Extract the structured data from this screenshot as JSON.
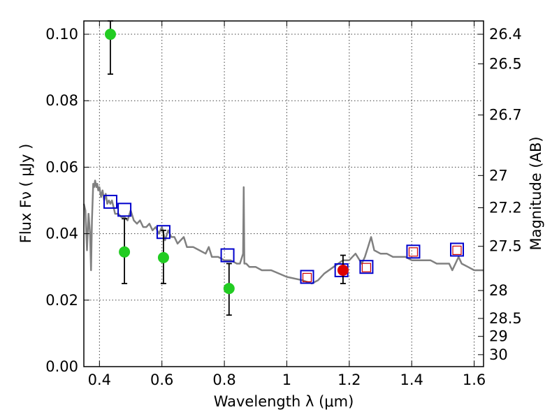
{
  "chart_data": {
    "type": "scatter",
    "title": "",
    "xlabel": "Wavelength  λ (μm)",
    "ylabel": "Flux  Fν  ( μJy )",
    "ylabel_right": "Magnitude (AB)",
    "xlim": [
      0.35,
      1.63
    ],
    "ylim": [
      0.0,
      0.104
    ],
    "grid": true,
    "x_ticks": [
      0.4,
      0.6,
      0.8,
      1.0,
      1.2,
      1.4,
      1.6
    ],
    "x_tick_labels": [
      "0.4",
      "0.6",
      "0.8",
      "1",
      "1.2",
      "1.4",
      "1.6"
    ],
    "y_ticks": [
      0.0,
      0.02,
      0.04,
      0.06,
      0.08,
      0.1
    ],
    "y_tick_labels": [
      "0.00",
      "0.02",
      "0.04",
      "0.06",
      "0.08",
      "0.10"
    ],
    "right_ticks": [
      {
        "flux": 0.1,
        "label": "26.4"
      },
      {
        "flux": 0.0911,
        "label": "26.5"
      },
      {
        "flux": 0.0757,
        "label": "26.7"
      },
      {
        "flux": 0.0575,
        "label": "27"
      },
      {
        "flux": 0.0478,
        "label": "27.2"
      },
      {
        "flux": 0.0362,
        "label": "27.5"
      },
      {
        "flux": 0.0229,
        "label": "28"
      },
      {
        "flux": 0.0145,
        "label": "28.5"
      },
      {
        "flux": 0.0091,
        "label": "29"
      },
      {
        "flux": 0.0036,
        "label": "30"
      }
    ],
    "series": [
      {
        "kind": "model_sed",
        "color": "#808080",
        "x": [
          0.35,
          0.355,
          0.36,
          0.365,
          0.37,
          0.373,
          0.376,
          0.38,
          0.383,
          0.386,
          0.39,
          0.393,
          0.396,
          0.4,
          0.405,
          0.41,
          0.415,
          0.42,
          0.425,
          0.43,
          0.435,
          0.44,
          0.445,
          0.45,
          0.46,
          0.47,
          0.48,
          0.49,
          0.5,
          0.51,
          0.52,
          0.53,
          0.54,
          0.55,
          0.56,
          0.57,
          0.58,
          0.59,
          0.6,
          0.61,
          0.62,
          0.63,
          0.64,
          0.65,
          0.66,
          0.67,
          0.68,
          0.7,
          0.72,
          0.74,
          0.75,
          0.76,
          0.78,
          0.8,
          0.82,
          0.84,
          0.85,
          0.86,
          0.862,
          0.864,
          0.866,
          0.868,
          0.87,
          0.88,
          0.9,
          0.92,
          0.95,
          1.0,
          1.05,
          1.08,
          1.1,
          1.12,
          1.15,
          1.18,
          1.2,
          1.22,
          1.24,
          1.25,
          1.26,
          1.27,
          1.28,
          1.3,
          1.32,
          1.34,
          1.36,
          1.38,
          1.4,
          1.42,
          1.44,
          1.46,
          1.48,
          1.5,
          1.52,
          1.53,
          1.54,
          1.55,
          1.56,
          1.58,
          1.6,
          1.63
        ],
        "y": [
          0.049,
          0.047,
          0.035,
          0.046,
          0.04,
          0.029,
          0.044,
          0.055,
          0.054,
          0.056,
          0.054,
          0.055,
          0.053,
          0.054,
          0.051,
          0.053,
          0.05,
          0.052,
          0.049,
          0.05,
          0.049,
          0.05,
          0.048,
          0.046,
          0.046,
          0.045,
          0.045,
          0.044,
          0.047,
          0.044,
          0.043,
          0.044,
          0.042,
          0.042,
          0.043,
          0.041,
          0.042,
          0.04,
          0.042,
          0.038,
          0.041,
          0.039,
          0.039,
          0.037,
          0.038,
          0.039,
          0.036,
          0.036,
          0.035,
          0.034,
          0.036,
          0.033,
          0.033,
          0.032,
          0.032,
          0.031,
          0.031,
          0.034,
          0.054,
          0.031,
          0.031,
          0.031,
          0.031,
          0.03,
          0.03,
          0.029,
          0.029,
          0.027,
          0.026,
          0.025,
          0.026,
          0.028,
          0.03,
          0.032,
          0.032,
          0.034,
          0.031,
          0.033,
          0.036,
          0.039,
          0.035,
          0.034,
          0.034,
          0.033,
          0.033,
          0.033,
          0.032,
          0.032,
          0.032,
          0.032,
          0.031,
          0.031,
          0.031,
          0.029,
          0.031,
          0.033,
          0.031,
          0.03,
          0.029,
          0.029
        ]
      },
      {
        "kind": "model_photometry",
        "marker": "open_square",
        "color": "#0000cc",
        "points": [
          {
            "x": 0.435,
            "y": 0.0496
          },
          {
            "x": 0.48,
            "y": 0.0472
          },
          {
            "x": 0.605,
            "y": 0.0405
          },
          {
            "x": 0.81,
            "y": 0.0335
          },
          {
            "x": 1.065,
            "y": 0.027
          },
          {
            "x": 1.175,
            "y": 0.029
          },
          {
            "x": 1.255,
            "y": 0.03
          },
          {
            "x": 1.405,
            "y": 0.0346
          },
          {
            "x": 1.545,
            "y": 0.0352
          }
        ]
      },
      {
        "kind": "observed_upper_points",
        "marker": "open_square_small",
        "color": "#cc0000",
        "points": [
          {
            "x": 1.065,
            "y": 0.0268
          },
          {
            "x": 1.255,
            "y": 0.0298
          },
          {
            "x": 1.405,
            "y": 0.0345
          },
          {
            "x": 1.545,
            "y": 0.035
          }
        ]
      },
      {
        "kind": "observed_detection",
        "marker": "filled_circle",
        "color": "#dd0000",
        "points": [
          {
            "x": 1.18,
            "y": 0.029,
            "yerr_low": 0.025,
            "yerr_high": 0.0335
          }
        ]
      },
      {
        "kind": "observed_optical",
        "marker": "filled_circle",
        "color": "#22cc22",
        "points": [
          {
            "x": 0.435,
            "y": 0.1,
            "yerr_low": 0.088,
            "yerr_high": 0.104
          },
          {
            "x": 0.48,
            "y": 0.0345,
            "yerr_low": 0.025,
            "yerr_high": 0.0445
          },
          {
            "x": 0.605,
            "y": 0.0328,
            "yerr_low": 0.025,
            "yerr_high": 0.041
          },
          {
            "x": 0.815,
            "y": 0.0235,
            "yerr_low": 0.0155,
            "yerr_high": 0.031
          }
        ]
      }
    ]
  }
}
